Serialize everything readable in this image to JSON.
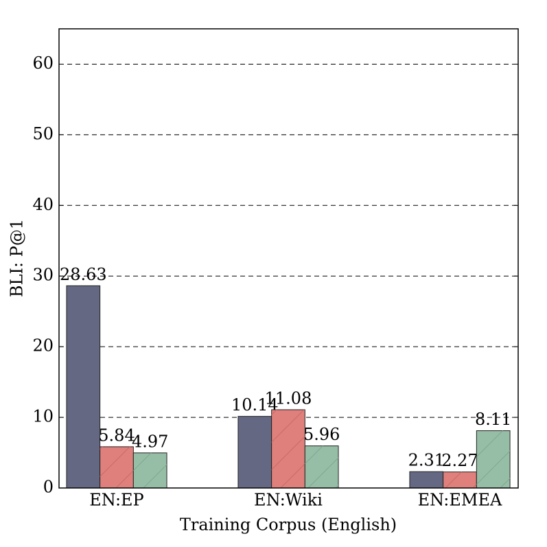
{
  "chart_data": {
    "type": "bar",
    "x_label": "Training Corpus (English)",
    "y_label": "BLI: P@1",
    "categories": [
      "EN:EP",
      "EN:Wiki",
      "EN:EMEA"
    ],
    "series": [
      {
        "color": "#646882",
        "values": [
          28.63,
          10.14,
          2.31
        ]
      },
      {
        "color": "#e0807c",
        "values": [
          5.84,
          11.08,
          2.27
        ]
      },
      {
        "color": "#96bda5",
        "values": [
          4.97,
          5.96,
          8.11
        ]
      }
    ],
    "ylim": [
      0,
      65
    ],
    "yticks": [
      0,
      10,
      20,
      30,
      40,
      50,
      60
    ],
    "grid": true
  }
}
